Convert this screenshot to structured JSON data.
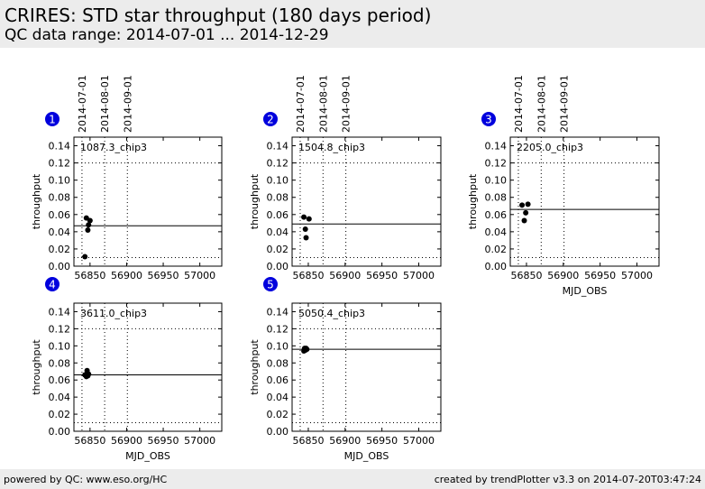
{
  "header": {
    "title": "CRIRES: STD star throughput (180 days period)",
    "subtitle": "QC data range: 2014-07-01 ... 2014-12-29"
  },
  "footer": {
    "left": "powered by QC: www.eso.org/HC",
    "right": "created by trendPlotter v3.3 on 2014-07-20T03:47:24"
  },
  "colors": {
    "badge": "#0000dd",
    "points": "#000000",
    "header_bg": "#ececec"
  },
  "date_markers": [
    {
      "label": "2014-07-01",
      "mjd": 56839
    },
    {
      "label": "2014-08-01",
      "mjd": 56870
    },
    {
      "label": "2014-09-01",
      "mjd": 56901
    }
  ],
  "chart_data": [
    {
      "type": "scatter",
      "panel": "1",
      "label": "1087.3_chip3",
      "xlabel": "",
      "ylabel": "throughput",
      "xlim": [
        56828,
        57030
      ],
      "ylim": [
        0.0,
        0.15
      ],
      "xticks": [
        56850,
        56900,
        56950,
        57000
      ],
      "yticks": [
        0.0,
        0.02,
        0.04,
        0.06,
        0.08,
        0.1,
        0.12,
        0.14
      ],
      "x": [
        56843,
        56845,
        56847,
        56848,
        56850
      ],
      "y": [
        0.011,
        0.056,
        0.042,
        0.048,
        0.053
      ],
      "reference_line": 0.047
    },
    {
      "type": "scatter",
      "panel": "2",
      "label": "1504.8_chip3",
      "xlabel": "",
      "ylabel": "throughput",
      "xlim": [
        56828,
        57030
      ],
      "ylim": [
        0.0,
        0.15
      ],
      "xticks": [
        56850,
        56900,
        56950,
        57000
      ],
      "yticks": [
        0.0,
        0.02,
        0.04,
        0.06,
        0.08,
        0.1,
        0.12,
        0.14
      ],
      "x": [
        56844,
        56846,
        56847,
        56851
      ],
      "y": [
        0.057,
        0.043,
        0.033,
        0.055
      ],
      "reference_line": 0.049
    },
    {
      "type": "scatter",
      "panel": "3",
      "label": "2205.0_chip3",
      "xlabel": "MJD_OBS",
      "ylabel": "throughput",
      "xlim": [
        56828,
        57030
      ],
      "ylim": [
        0.0,
        0.15
      ],
      "xticks": [
        56850,
        56900,
        56950,
        57000
      ],
      "yticks": [
        0.0,
        0.02,
        0.04,
        0.06,
        0.08,
        0.1,
        0.12,
        0.14
      ],
      "x": [
        56844,
        56847,
        56849,
        56852
      ],
      "y": [
        0.071,
        0.053,
        0.062,
        0.072
      ],
      "reference_line": 0.066
    },
    {
      "type": "scatter",
      "panel": "4",
      "label": "3611.0_chip3",
      "xlabel": "MJD_OBS",
      "ylabel": "throughput",
      "xlim": [
        56828,
        57030
      ],
      "ylim": [
        0.0,
        0.15
      ],
      "xticks": [
        56850,
        56900,
        56950,
        57000
      ],
      "yticks": [
        0.0,
        0.02,
        0.04,
        0.06,
        0.08,
        0.1,
        0.12,
        0.14
      ],
      "x": [
        56843,
        56845,
        56846,
        56847,
        56848
      ],
      "y": [
        0.066,
        0.064,
        0.071,
        0.065,
        0.067
      ],
      "reference_line": 0.066
    },
    {
      "type": "scatter",
      "panel": "5",
      "label": "5050.4_chip3",
      "xlabel": "MJD_OBS",
      "ylabel": "throughput",
      "xlim": [
        56828,
        57030
      ],
      "ylim": [
        0.0,
        0.15
      ],
      "xticks": [
        56850,
        56900,
        56950,
        57000
      ],
      "yticks": [
        0.0,
        0.02,
        0.04,
        0.06,
        0.08,
        0.1,
        0.12,
        0.14
      ],
      "x": [
        56844,
        56845,
        56846,
        56847,
        56848
      ],
      "y": [
        0.094,
        0.097,
        0.095,
        0.097,
        0.096
      ],
      "reference_line": 0.096
    }
  ]
}
